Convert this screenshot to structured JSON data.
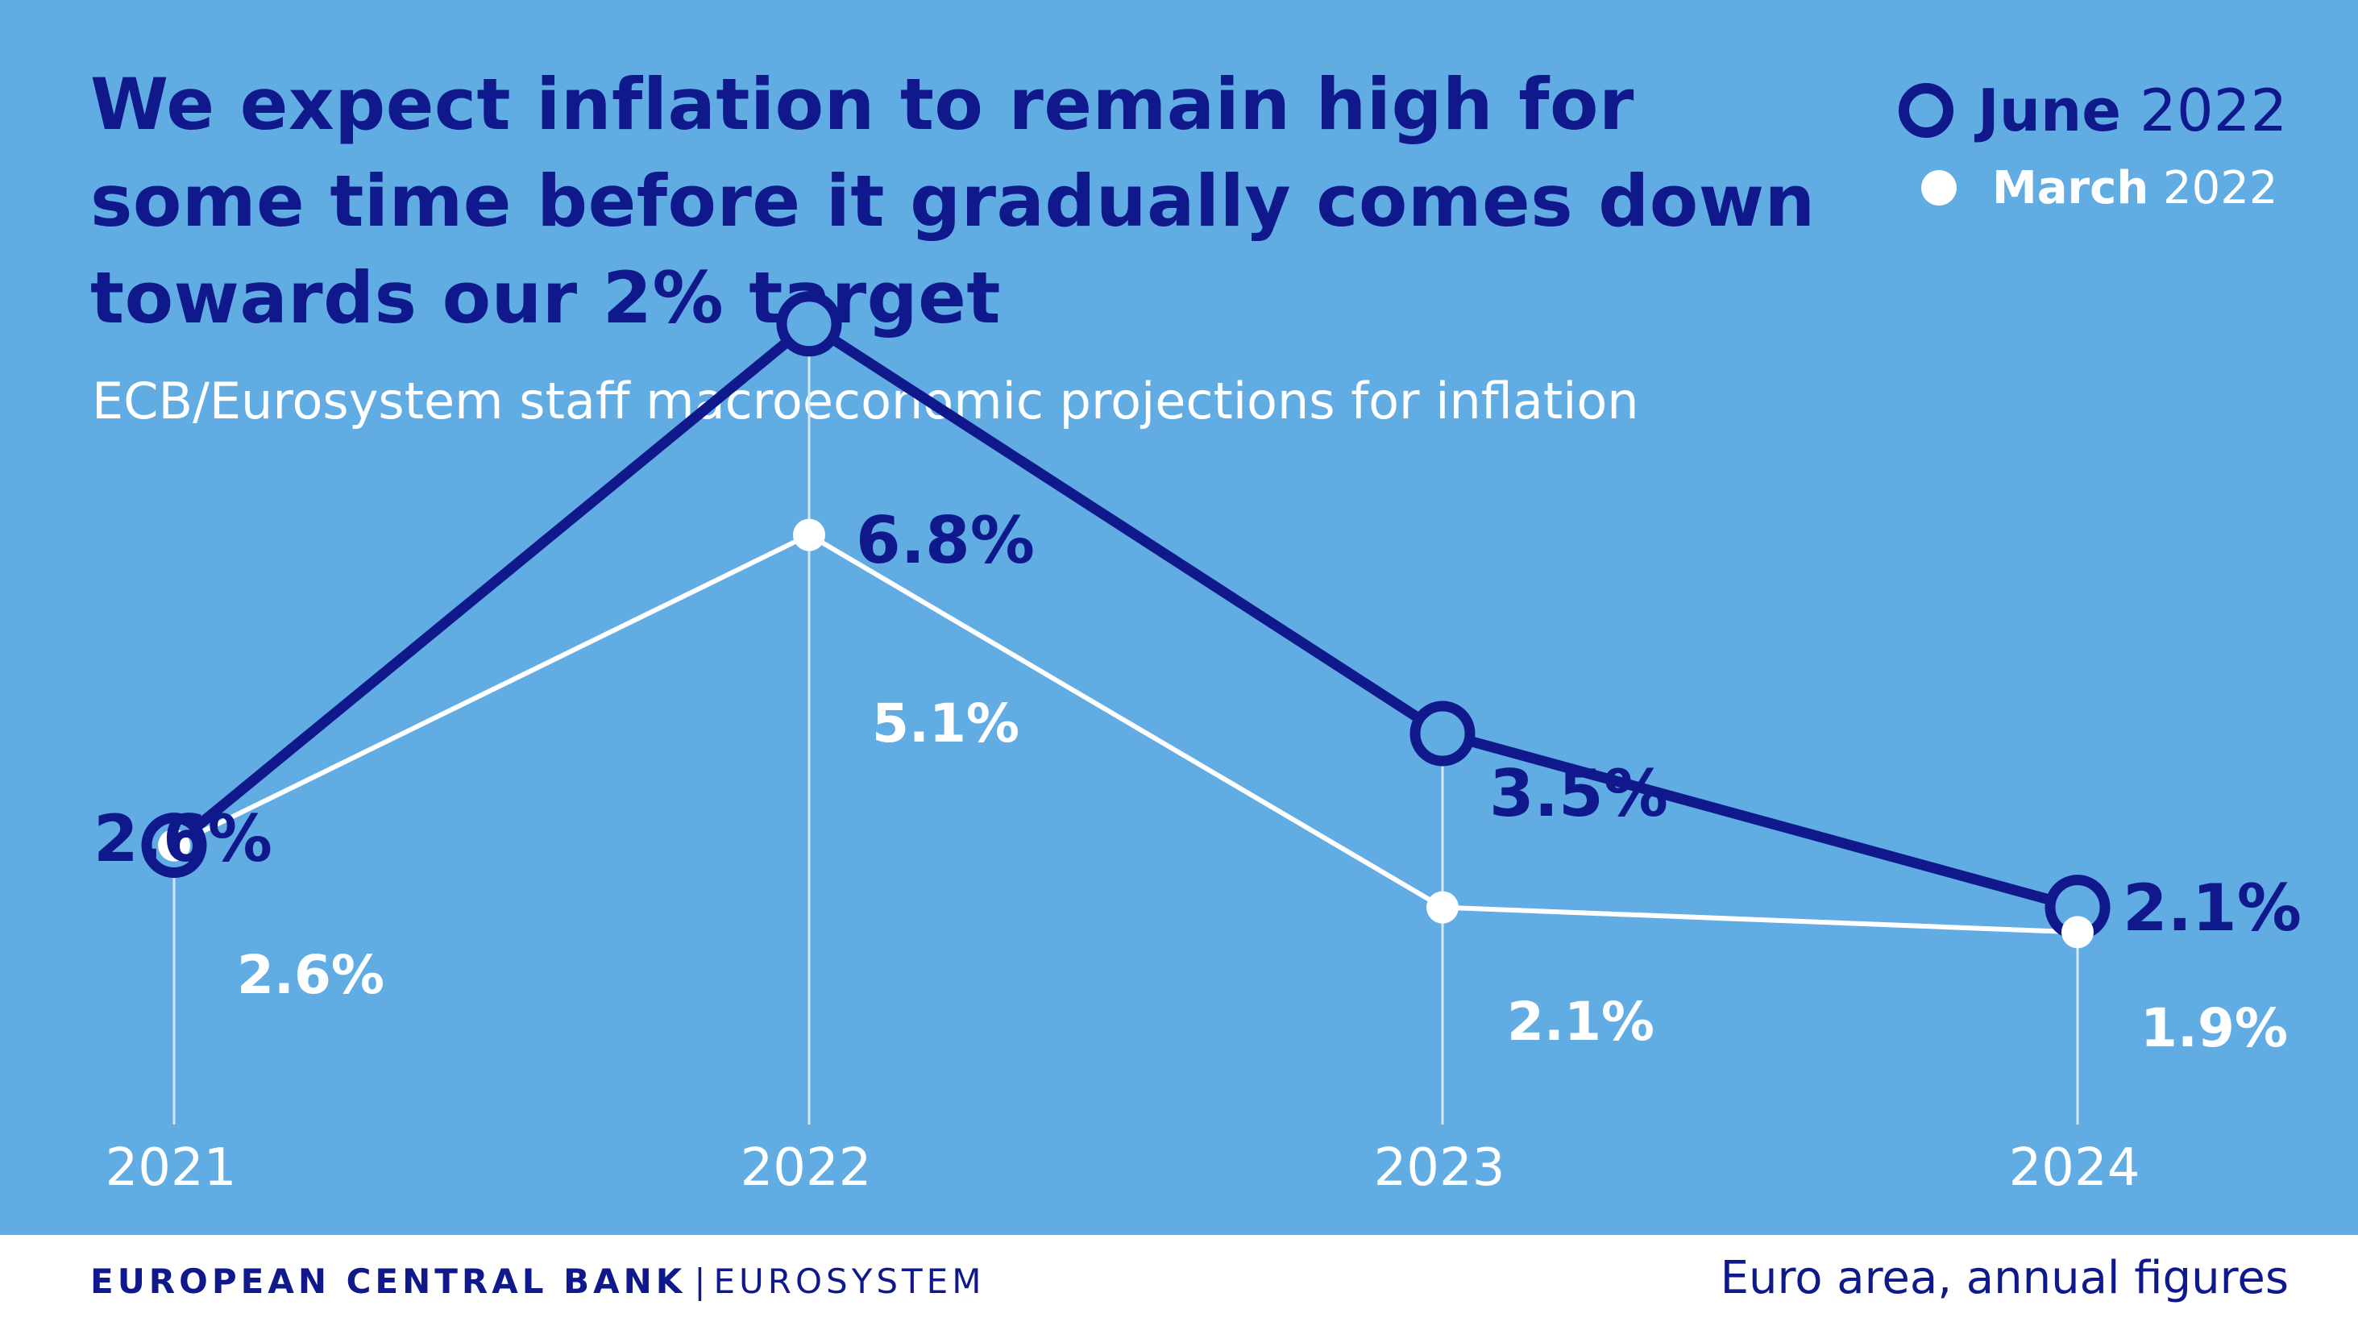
{
  "header": {
    "title": "We expect inflation to remain high for some time before it gradually comes down towards our 2% target",
    "subtitle": "ECB/Eurosystem staff macroeconomic projections for inflation"
  },
  "legend": {
    "june": {
      "month": "June",
      "year": "2022"
    },
    "march": {
      "month": "March",
      "year": "2022"
    }
  },
  "footer": {
    "brand_primary": "EUROPEAN CENTRAL BANK",
    "brand_separator": "|",
    "brand_secondary": "EUROSYSTEM",
    "note": "Euro area, annual figures"
  },
  "colors": {
    "background": "#60ace3",
    "june_series": "#10198c",
    "march_series": "#ffffff",
    "footer_background": "#ffffff"
  },
  "chart_data": {
    "type": "line",
    "categories": [
      "2021",
      "2022",
      "2023",
      "2024"
    ],
    "series": [
      {
        "name": "June 2022",
        "values": [
          2.6,
          6.8,
          3.5,
          2.1
        ],
        "labels": [
          "2.6%",
          "6.8%",
          "3.5%",
          "2.1%"
        ],
        "color": "#10198c",
        "marker": "ring"
      },
      {
        "name": "March 2022",
        "values": [
          2.6,
          5.1,
          2.1,
          1.9
        ],
        "labels": [
          "2.6%",
          "5.1%",
          "2.1%",
          "1.9%"
        ],
        "color": "#ffffff",
        "marker": "dot"
      }
    ],
    "title": "We expect inflation to remain high for some time before it gradually comes down towards our 2% target",
    "subtitle": "ECB/Eurosystem staff macroeconomic projections for inflation",
    "xlabel": "",
    "ylabel": "",
    "ylim": [
      0,
      7
    ],
    "grid": false,
    "legend_position": "top-right"
  }
}
